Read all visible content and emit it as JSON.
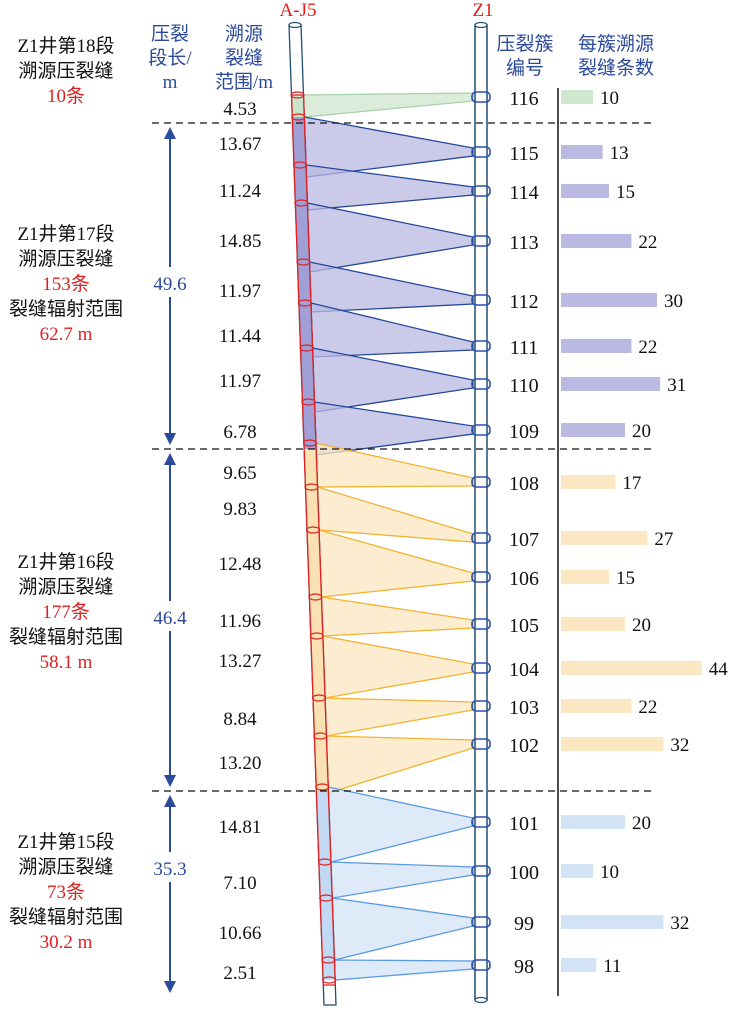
{
  "wells": {
    "left": "A-J5",
    "right": "Z1"
  },
  "headers": {
    "stage_length": [
      "压裂",
      "段长/",
      "m"
    ],
    "trace_range": [
      "溯源",
      "裂缝",
      "范围/m"
    ],
    "cluster_no": [
      "压裂簇",
      "编号"
    ],
    "fracs_per_cluster": [
      "每簇溯源",
      "裂缝条数"
    ]
  },
  "colors": {
    "stage18": {
      "fill": "#cfe6cf",
      "stroke": "#a9d3a9"
    },
    "stage17": {
      "fill": "#b9b9e2",
      "stroke": "#24479a"
    },
    "stage16": {
      "fill": "#fbe7c2",
      "stroke": "#f2b232"
    },
    "stage15": {
      "fill": "#d3e3f6",
      "stroke": "#5b9be3"
    },
    "well_left": "#e02020",
    "well_right": "#1f4e6e"
  },
  "stages": [
    {
      "key": "stage18",
      "title": "Z1井第18段",
      "sub": "溯源压裂缝",
      "count": "10条",
      "radius_label": "",
      "radius": "",
      "length": ""
    },
    {
      "key": "stage17",
      "title": "Z1井第17段",
      "sub": "溯源压裂缝",
      "count": "153条",
      "radius_label": "裂缝辐射范围",
      "radius": "62.7 m",
      "length": "49.6"
    },
    {
      "key": "stage16",
      "title": "Z1井第16段",
      "sub": "溯源压裂缝",
      "count": "177条",
      "radius_label": "裂缝辐射范围",
      "radius": "58.1 m",
      "length": "46.4"
    },
    {
      "key": "stage15",
      "title": "Z1井第15段",
      "sub": "溯源压裂缝",
      "count": "73条",
      "radius_label": "裂缝辐射范围",
      "radius": "30.2 m",
      "length": "35.3"
    }
  ],
  "clusters": [
    {
      "id": "116",
      "stage": "stage18",
      "fractures": 10
    },
    {
      "id": "115",
      "stage": "stage17",
      "fractures": 13
    },
    {
      "id": "114",
      "stage": "stage17",
      "fractures": 15
    },
    {
      "id": "113",
      "stage": "stage17",
      "fractures": 22
    },
    {
      "id": "112",
      "stage": "stage17",
      "fractures": 30
    },
    {
      "id": "111",
      "stage": "stage17",
      "fractures": 22
    },
    {
      "id": "110",
      "stage": "stage17",
      "fractures": 31
    },
    {
      "id": "109",
      "stage": "stage17",
      "fractures": 20
    },
    {
      "id": "108",
      "stage": "stage16",
      "fractures": 17
    },
    {
      "id": "107",
      "stage": "stage16",
      "fractures": 27
    },
    {
      "id": "106",
      "stage": "stage16",
      "fractures": 15
    },
    {
      "id": "105",
      "stage": "stage16",
      "fractures": 20
    },
    {
      "id": "104",
      "stage": "stage16",
      "fractures": 44
    },
    {
      "id": "103",
      "stage": "stage16",
      "fractures": 22
    },
    {
      "id": "102",
      "stage": "stage16",
      "fractures": 32
    },
    {
      "id": "101",
      "stage": "stage15",
      "fractures": 20
    },
    {
      "id": "100",
      "stage": "stage15",
      "fractures": 10
    },
    {
      "id": "99",
      "stage": "stage15",
      "fractures": 32
    },
    {
      "id": "98",
      "stage": "stage15",
      "fractures": 11
    }
  ],
  "trace_ranges_m": [
    "4.53",
    "13.67",
    "11.24",
    "14.85",
    "11.97",
    "11.44",
    "11.97",
    "6.78",
    "9.65",
    "9.83",
    "12.48",
    "11.96",
    "13.27",
    "8.84",
    "13.20",
    "14.81",
    "7.10",
    "10.66",
    "2.51"
  ]
}
